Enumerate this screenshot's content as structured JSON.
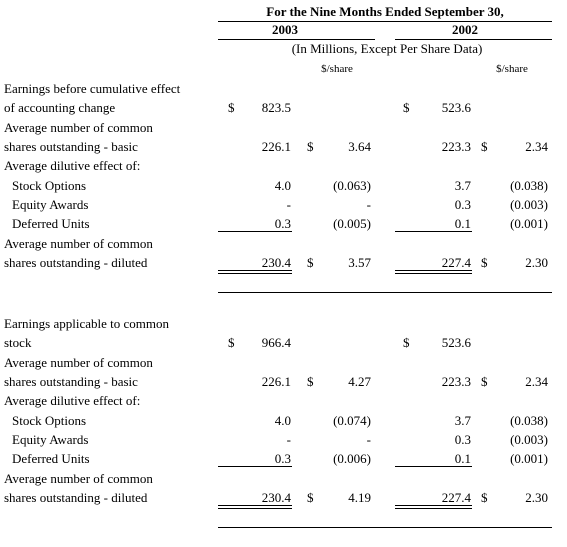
{
  "header": {
    "title": "For the Nine Months Ended September 30,",
    "years": [
      "2003",
      "2002"
    ],
    "subtitle": "(In Millions, Except Per Share Data)",
    "per_share": [
      "$/share",
      "$/share"
    ]
  },
  "sections": [
    {
      "rows": [
        {
          "label": [
            "Earnings before cumulative effect",
            "of accounting change"
          ],
          "values": [
            "$",
            "823.5",
            null,
            null,
            "$",
            "523.6",
            null,
            null
          ]
        },
        {
          "label": [
            "Average number of common",
            "shares outstanding - basic"
          ],
          "values": [
            null,
            "226.1",
            "$",
            "3.64",
            null,
            "223.3",
            "$",
            "2.34"
          ]
        },
        {
          "label": [
            "Average dilutive effect of:"
          ],
          "items": [
            {
              "label": [
                "Stock Options"
              ],
              "values": [
                null,
                "4.0",
                null,
                "(0.063)",
                null,
                "3.7",
                null,
                "(0.038)"
              ]
            },
            {
              "label": [
                "Equity Awards"
              ],
              "values": [
                null,
                "-",
                null,
                "-",
                null,
                "0.3",
                null,
                "(0.003)"
              ]
            },
            {
              "label": [
                "Deferred Units"
              ],
              "values": [
                null,
                "0.3",
                null,
                "(0.005)",
                null,
                "0.1",
                null,
                "(0.001)"
              ]
            }
          ]
        },
        {
          "label": [
            "Average number of common",
            "shares outstanding - diluted"
          ],
          "values": [
            null,
            "230.4",
            "$",
            "3.57",
            null,
            "227.4",
            "$",
            "2.30"
          ]
        }
      ]
    },
    {
      "rows": [
        {
          "label": [
            "Earnings applicable to common",
            "stock"
          ],
          "values": [
            "$",
            "966.4",
            null,
            null,
            "$",
            "523.6",
            null,
            null
          ]
        },
        {
          "label": [
            "Average number of common",
            "shares outstanding - basic"
          ],
          "values": [
            null,
            "226.1",
            "$",
            "4.27",
            null,
            "223.3",
            "$",
            "2.34"
          ]
        },
        {
          "label": [
            "Average dilutive effect of:"
          ],
          "items": [
            {
              "label": [
                "Stock Options"
              ],
              "values": [
                null,
                "4.0",
                null,
                "(0.074)",
                null,
                "3.7",
                null,
                "(0.038)"
              ]
            },
            {
              "label": [
                "Equity Awards"
              ],
              "values": [
                null,
                "-",
                null,
                "-",
                null,
                "0.3",
                null,
                "(0.003)"
              ]
            },
            {
              "label": [
                "Deferred Units"
              ],
              "values": [
                null,
                "0.3",
                null,
                "(0.006)",
                null,
                "0.1",
                null,
                "(0.001)"
              ]
            }
          ]
        },
        {
          "label": [
            "Average number of common",
            "shares outstanding - diluted"
          ],
          "values": [
            null,
            "230.4",
            "$",
            "4.19",
            null,
            "227.4",
            "$",
            "2.30"
          ]
        }
      ]
    }
  ]
}
